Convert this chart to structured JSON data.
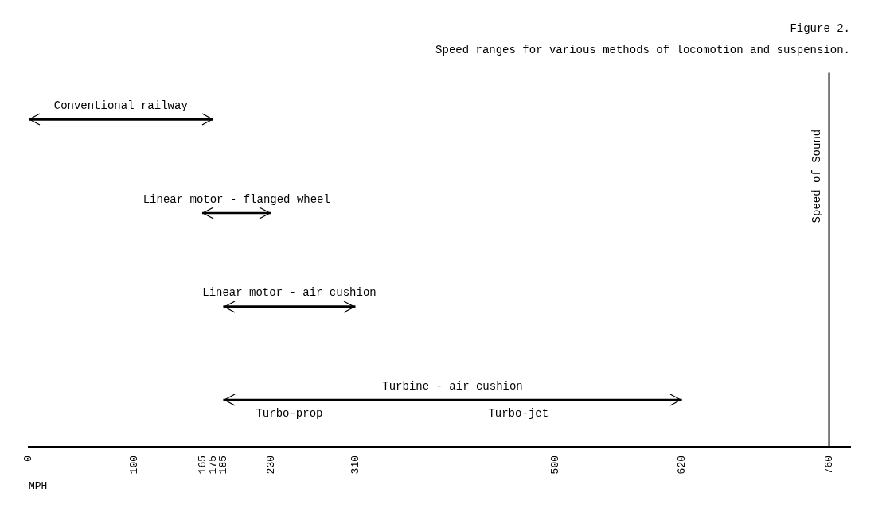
{
  "chart_data": {
    "type": "bar",
    "orientation": "horizontal",
    "title": "Figure 2.",
    "subtitle": "Speed ranges for various methods of locomotion and suspension.",
    "xlabel": "MPH",
    "categories": [
      "Conventional railway",
      "Linear motor - flanged wheel",
      "Linear motor - air cushion",
      "Turbine - air cushion"
    ],
    "base": [
      0,
      165,
      185,
      185
    ],
    "values": [
      175,
      65,
      125,
      435
    ],
    "color": "#000000",
    "xlim": [
      0,
      780
    ],
    "xticks": [
      0,
      100,
      165,
      175,
      185,
      230,
      310,
      500,
      620,
      760
    ],
    "tick_labels": "x",
    "grid": false,
    "legend": false,
    "ref_lines": [
      {
        "axis": "x",
        "value": 760,
        "label": "Speed of Sound"
      }
    ],
    "annotations": [
      {
        "text": "Turbo-prop",
        "x": 247.5,
        "y": "Turbine - air cushion"
      },
      {
        "text": "Turbo-jet",
        "x": 465,
        "y": "Turbine - air cushion"
      }
    ]
  }
}
